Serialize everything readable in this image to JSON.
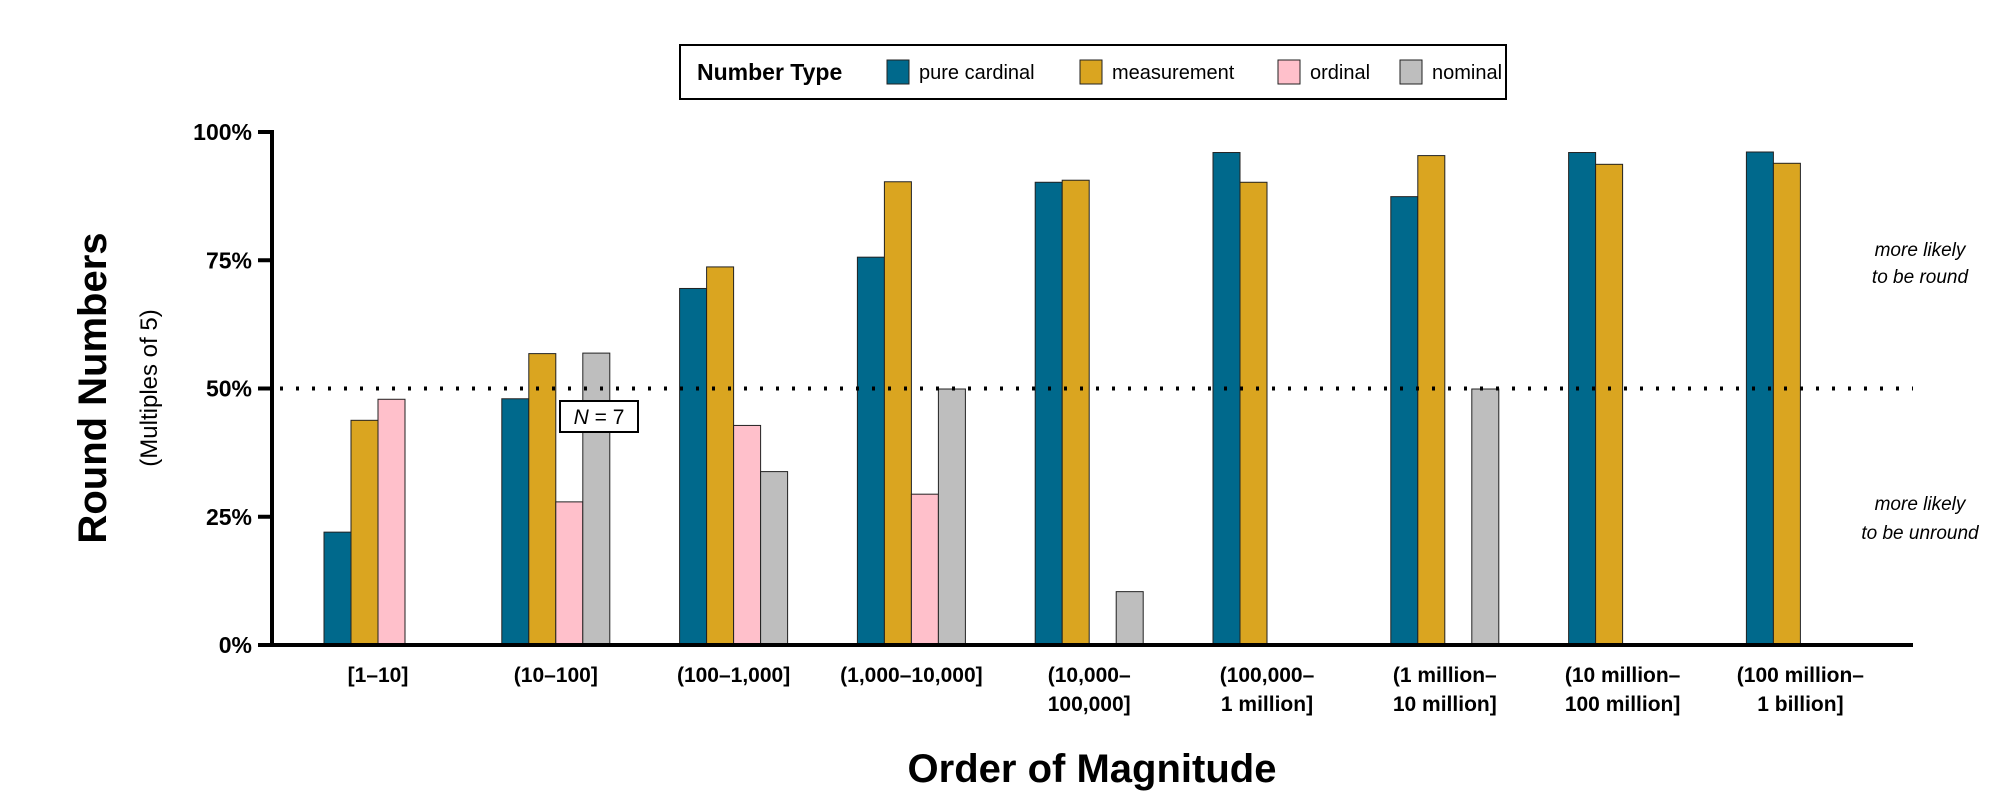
{
  "chart_data": {
    "type": "bar",
    "title": "",
    "xlabel": "Order of Magnitude",
    "ylabel": "Round Numbers",
    "ylabel_sub": "(Multiples of 5)",
    "ylim": [
      0,
      100
    ],
    "yticks": [
      "0%",
      "25%",
      "50%",
      "75%",
      "100%"
    ],
    "ytick_values": [
      0,
      25,
      50,
      75,
      100
    ],
    "grid": false,
    "legend": {
      "title": "Number Type",
      "placement": "top-center"
    },
    "categories": [
      [
        "[1–10]"
      ],
      [
        "(10–100]"
      ],
      [
        "(100–1,000]"
      ],
      [
        "(1,000–10,000]"
      ],
      [
        "(10,000–",
        "100,000]"
      ],
      [
        "(100,000–",
        "1 million]"
      ],
      [
        "(1 million–",
        "10 million]"
      ],
      [
        "(10 million–",
        "100 million]"
      ],
      [
        "(100 million–",
        "1 billion]"
      ]
    ],
    "series": [
      {
        "name": "pure cardinal",
        "color": "#00698c",
        "values": [
          22,
          48,
          69.5,
          75.6,
          90.2,
          96,
          87.4,
          96,
          96.1
        ]
      },
      {
        "name": "measurement",
        "color": "#daa520",
        "values": [
          43.8,
          56.8,
          73.7,
          90.3,
          90.6,
          90.2,
          95.4,
          93.7,
          93.9
        ]
      },
      {
        "name": "ordinal",
        "color": "#ffc0cb",
        "values": [
          47.9,
          27.9,
          42.8,
          29.4,
          null,
          null,
          null,
          null,
          null
        ]
      },
      {
        "name": "nominal",
        "color": "#bebebe",
        "values": [
          null,
          56.9,
          33.8,
          49.9,
          10.4,
          null,
          49.9,
          null,
          null
        ]
      }
    ],
    "reference_line": {
      "value": 50,
      "style": "dotted"
    },
    "annotations": {
      "n_label_italic": "N",
      "n_label_rest": " = 7",
      "upper_note": [
        "more likely",
        "to be round"
      ],
      "lower_note": [
        "more likely",
        "to be unround"
      ]
    }
  }
}
